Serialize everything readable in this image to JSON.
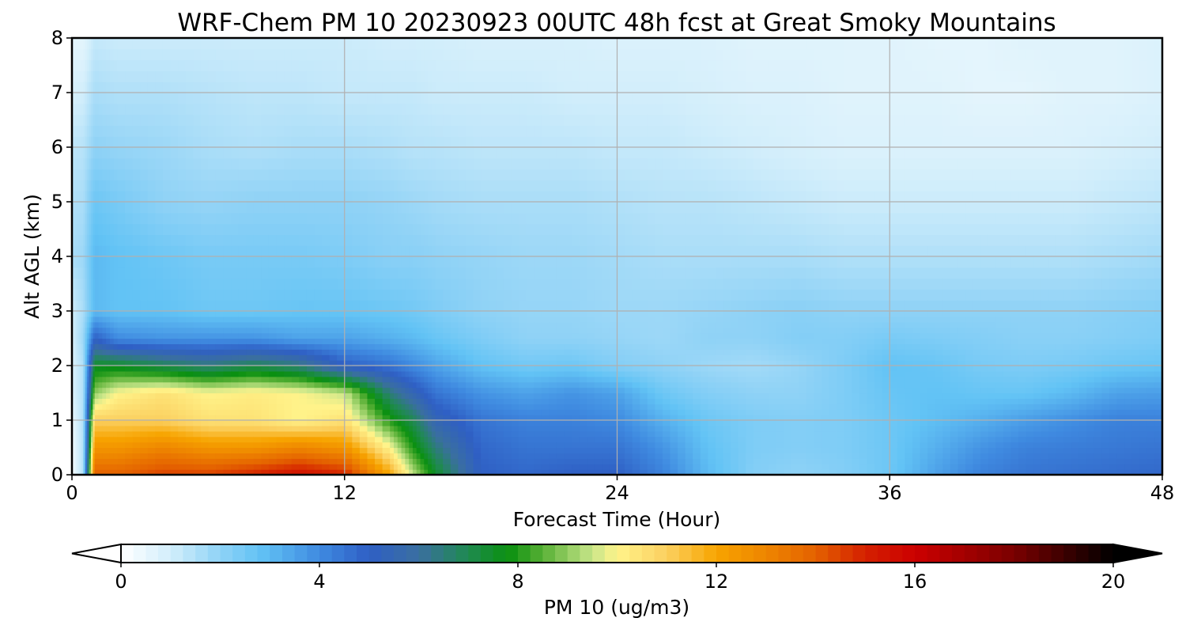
{
  "chart_data": {
    "type": "heatmap",
    "title": "WRF-Chem PM 10  20230923 00UTC 48h fcst at Great Smoky Mountains",
    "xlabel": "Forecast Time (Hour)",
    "ylabel": "Alt AGL (km)",
    "xlim": [
      0,
      48
    ],
    "ylim": [
      0,
      8
    ],
    "xticks": [
      "0",
      "12",
      "24",
      "36",
      "48"
    ],
    "yticks": [
      "0",
      "1",
      "2",
      "3",
      "4",
      "5",
      "6",
      "7",
      "8"
    ],
    "grid": true,
    "x_hours": [
      0,
      0.5,
      1,
      2,
      4,
      6,
      8,
      10,
      12,
      14,
      15,
      16,
      18,
      20,
      22,
      24,
      26,
      28,
      30,
      32,
      34,
      36,
      38,
      40,
      42,
      44,
      46,
      48
    ],
    "y_km": [
      0,
      0.5,
      1,
      1.5,
      2,
      2.5,
      3,
      4,
      5,
      6,
      7,
      8
    ],
    "pm10_values": [
      [
        0.2,
        0.3,
        0.5,
        0.8,
        0.8,
        0.9,
        1.0,
        1.6,
        1.5,
        1.3,
        0.9,
        0.6
      ],
      [
        1.5,
        1.5,
        1.5,
        1.5,
        1.5,
        1.8,
        1.6,
        1.8,
        1.6,
        1.4,
        1.0,
        0.6
      ],
      [
        14.0,
        12.5,
        11.0,
        9.0,
        7.5,
        5.0,
        3.0,
        3.0,
        2.6,
        2.0,
        1.6,
        1.2
      ],
      [
        14.0,
        12.5,
        11.0,
        10.0,
        7.5,
        4.0,
        2.8,
        2.8,
        2.4,
        1.9,
        1.5,
        1.1
      ],
      [
        14.5,
        13.0,
        11.0,
        10.5,
        7.0,
        3.8,
        2.8,
        2.6,
        2.0,
        1.8,
        1.5,
        1.1
      ],
      [
        14.5,
        12.5,
        10.5,
        10.0,
        6.5,
        3.8,
        2.6,
        2.4,
        1.9,
        1.6,
        1.4,
        1.1
      ],
      [
        15.0,
        12.5,
        10.5,
        10.2,
        7.0,
        3.8,
        2.6,
        2.4,
        2.0,
        1.5,
        1.3,
        1.1
      ],
      [
        15.5,
        13.0,
        10.0,
        10.0,
        6.5,
        3.5,
        2.7,
        2.4,
        2.0,
        1.6,
        1.3,
        1.1
      ],
      [
        15.0,
        12.5,
        10.5,
        9.5,
        5.0,
        3.5,
        2.7,
        2.3,
        2.0,
        1.6,
        1.2,
        1.1
      ],
      [
        12.0,
        10.0,
        8.0,
        6.5,
        4.5,
        3.2,
        2.6,
        2.1,
        1.9,
        1.5,
        1.2,
        1.0
      ],
      [
        9.5,
        8.0,
        7.0,
        5.5,
        4.0,
        3.0,
        2.5,
        2.1,
        1.8,
        1.4,
        1.2,
        1.0
      ],
      [
        7.5,
        6.5,
        5.5,
        4.5,
        3.5,
        2.7,
        2.3,
        2.0,
        1.7,
        1.4,
        1.1,
        1.0
      ],
      [
        5.0,
        4.8,
        4.5,
        3.8,
        2.8,
        2.3,
        2.0,
        1.9,
        1.6,
        1.3,
        1.1,
        0.9
      ],
      [
        4.8,
        4.5,
        4.2,
        3.5,
        2.5,
        2.0,
        1.9,
        1.8,
        1.6,
        1.3,
        1.1,
        0.9
      ],
      [
        5.0,
        4.5,
        4.2,
        3.8,
        2.6,
        2.0,
        1.9,
        1.8,
        1.6,
        1.3,
        1.0,
        0.9
      ],
      [
        5.0,
        4.5,
        4.0,
        3.5,
        2.2,
        1.9,
        1.8,
        1.7,
        1.5,
        1.2,
        1.0,
        0.8
      ],
      [
        4.2,
        3.8,
        3.2,
        2.6,
        2.0,
        1.8,
        1.8,
        1.6,
        1.4,
        1.2,
        1.0,
        0.8
      ],
      [
        3.0,
        2.8,
        2.6,
        2.2,
        1.8,
        2.0,
        1.9,
        1.6,
        1.4,
        1.1,
        0.9,
        0.8
      ],
      [
        2.2,
        2.3,
        2.3,
        2.0,
        1.7,
        2.0,
        2.0,
        1.6,
        1.3,
        1.0,
        0.8,
        0.7
      ],
      [
        2.0,
        2.2,
        2.2,
        2.0,
        1.9,
        2.2,
        2.1,
        1.6,
        1.2,
        0.9,
        0.8,
        0.7
      ],
      [
        2.2,
        2.3,
        2.3,
        2.3,
        2.3,
        2.2,
        2.0,
        1.5,
        1.1,
        0.8,
        0.7,
        0.7
      ],
      [
        2.6,
        2.6,
        2.6,
        2.7,
        2.8,
        2.4,
        2.0,
        1.5,
        1.1,
        0.8,
        0.7,
        0.7
      ],
      [
        3.5,
        3.2,
        2.9,
        2.8,
        2.7,
        2.3,
        2.0,
        1.5,
        1.1,
        0.8,
        0.7,
        0.6
      ],
      [
        4.2,
        3.8,
        3.2,
        2.7,
        2.4,
        2.2,
        2.0,
        1.5,
        1.1,
        0.8,
        0.6,
        0.6
      ],
      [
        4.5,
        4.2,
        3.6,
        2.7,
        2.3,
        2.1,
        2.0,
        1.5,
        1.1,
        0.8,
        0.6,
        0.7
      ],
      [
        4.6,
        4.3,
        3.9,
        3.0,
        2.4,
        2.1,
        2.0,
        1.5,
        1.1,
        0.8,
        0.7,
        0.7
      ],
      [
        4.7,
        4.4,
        4.2,
        3.5,
        2.6,
        2.2,
        2.1,
        1.6,
        1.2,
        0.9,
        0.7,
        0.7
      ],
      [
        4.8,
        4.5,
        4.2,
        3.6,
        2.7,
        2.3,
        2.2,
        1.7,
        1.3,
        1.0,
        0.8,
        0.8
      ]
    ],
    "colorbar": {
      "label": "PM 10  (ug/m3)",
      "min": 0,
      "max": 20,
      "ticks": [
        "0",
        "4",
        "8",
        "12",
        "16",
        "20"
      ],
      "extend": "both",
      "stops": [
        {
          "value": 0,
          "color": "#ffffff"
        },
        {
          "value": 1,
          "color": "#d2eefb"
        },
        {
          "value": 2,
          "color": "#8fd2f6"
        },
        {
          "value": 2.8,
          "color": "#62c3f5"
        },
        {
          "value": 4,
          "color": "#3f8ae0"
        },
        {
          "value": 5,
          "color": "#2f5fc4"
        },
        {
          "value": 6,
          "color": "#3a6fa0"
        },
        {
          "value": 7,
          "color": "#1f8a50"
        },
        {
          "value": 7.8,
          "color": "#0a9010"
        },
        {
          "value": 8.5,
          "color": "#58b035"
        },
        {
          "value": 9.5,
          "color": "#c8e68a"
        },
        {
          "value": 10,
          "color": "#fff38a"
        },
        {
          "value": 11,
          "color": "#fbd060"
        },
        {
          "value": 12,
          "color": "#f7a400"
        },
        {
          "value": 13,
          "color": "#ee8500"
        },
        {
          "value": 14,
          "color": "#e46100"
        },
        {
          "value": 15,
          "color": "#d42000"
        },
        {
          "value": 16,
          "color": "#cc0000"
        },
        {
          "value": 18,
          "color": "#7a0000"
        },
        {
          "value": 20,
          "color": "#000000"
        }
      ]
    }
  }
}
